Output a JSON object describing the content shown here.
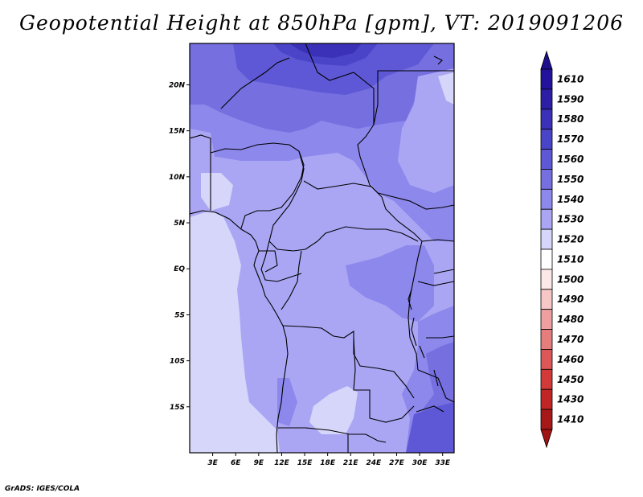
{
  "title": "Geopotential Height at 850hPa [gpm], VT: 2019091206",
  "footer": "GrADS: IGES/COLA",
  "map": {
    "lat_range": [
      -20,
      24.5
    ],
    "lon_range": [
      0,
      34.5
    ],
    "lat_ticks": [
      {
        "value": 20,
        "label": "20N"
      },
      {
        "value": 15,
        "label": "15N"
      },
      {
        "value": 10,
        "label": "10N"
      },
      {
        "value": 5,
        "label": "5N"
      },
      {
        "value": 0,
        "label": "EQ"
      },
      {
        "value": -5,
        "label": "5S"
      },
      {
        "value": -10,
        "label": "10S"
      },
      {
        "value": -15,
        "label": "15S"
      }
    ],
    "lon_ticks": [
      {
        "value": 3,
        "label": "3E"
      },
      {
        "value": 6,
        "label": "6E"
      },
      {
        "value": 9,
        "label": "9E"
      },
      {
        "value": 12,
        "label": "12E"
      },
      {
        "value": 15,
        "label": "15E"
      },
      {
        "value": 18,
        "label": "18E"
      },
      {
        "value": 21,
        "label": "21E"
      },
      {
        "value": 24,
        "label": "24E"
      },
      {
        "value": 27,
        "label": "27E"
      },
      {
        "value": 30,
        "label": "30E"
      },
      {
        "value": 33,
        "label": "33E"
      }
    ]
  },
  "colorbar": {
    "levels": [
      {
        "label": "1610",
        "color": "#23129c"
      },
      {
        "label": "1590",
        "color": "#2c1fa6"
      },
      {
        "label": "1580",
        "color": "#3a31b8"
      },
      {
        "label": "1570",
        "color": "#4a44c8"
      },
      {
        "label": "1560",
        "color": "#5e58d6"
      },
      {
        "label": "1550",
        "color": "#756fe0"
      },
      {
        "label": "1540",
        "color": "#8d88ec"
      },
      {
        "label": "1530",
        "color": "#aba6f4"
      },
      {
        "label": "1520",
        "color": "#d6d6fa"
      },
      {
        "label": "1510",
        "color": "#ffffff"
      },
      {
        "label": "1500",
        "color": "#fde8e8"
      },
      {
        "label": "1490",
        "color": "#f7c6c6"
      },
      {
        "label": "1480",
        "color": "#ef9f9f"
      },
      {
        "label": "1470",
        "color": "#e57d7d"
      },
      {
        "label": "1460",
        "color": "#dc5858"
      },
      {
        "label": "1450",
        "color": "#d23a3a"
      },
      {
        "label": "1430",
        "color": "#c22525"
      },
      {
        "label": "1410",
        "color": "#a71818"
      }
    ],
    "top_color": "#1e0f8c",
    "bottom_color": "#a21414"
  }
}
